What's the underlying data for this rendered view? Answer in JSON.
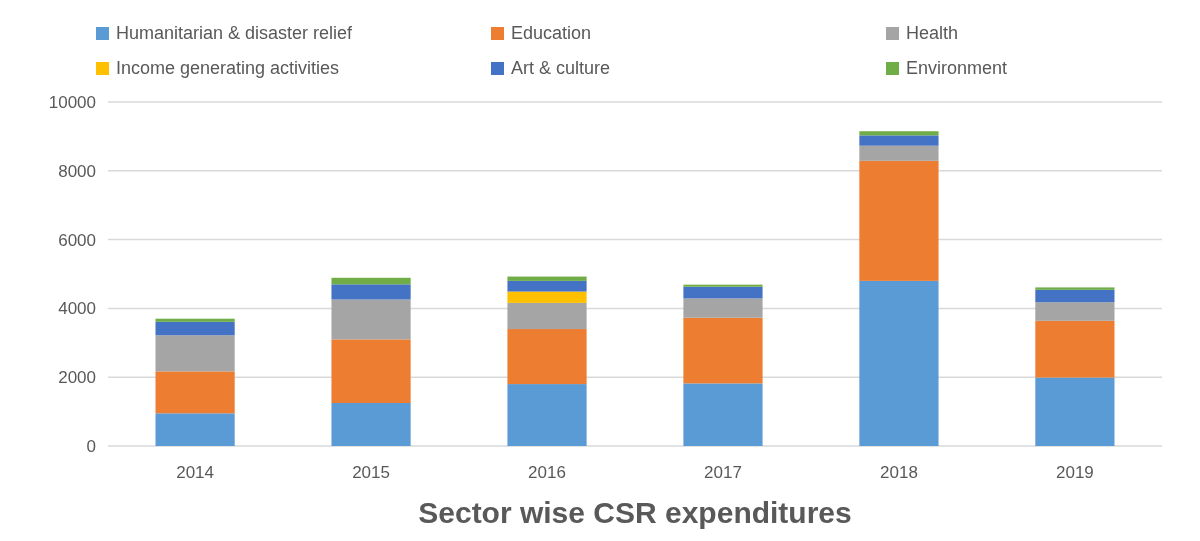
{
  "chart_data": {
    "type": "bar",
    "stacked": true,
    "title": "Sector wise CSR expenditures",
    "categories": [
      "2014",
      "2015",
      "2016",
      "2017",
      "2018",
      "2019"
    ],
    "series": [
      {
        "name": "Humanitarian & disaster relief",
        "color": "#5b9bd5",
        "values": [
          950,
          1250,
          1800,
          1820,
          4800,
          1990
        ]
      },
      {
        "name": "Education",
        "color": "#ed7d31",
        "values": [
          1220,
          1850,
          1600,
          1910,
          3490,
          1650
        ]
      },
      {
        "name": "Health",
        "color": "#a5a5a5",
        "values": [
          1050,
          1160,
          760,
          560,
          440,
          540
        ]
      },
      {
        "name": "Income generating activities",
        "color": "#ffc000",
        "values": [
          0,
          0,
          330,
          0,
          0,
          0
        ]
      },
      {
        "name": "Art & culture",
        "color": "#4472c4",
        "values": [
          390,
          440,
          310,
          340,
          300,
          360
        ]
      },
      {
        "name": "Environment",
        "color": "#70ad47",
        "values": [
          90,
          190,
          125,
          60,
          120,
          70
        ]
      }
    ],
    "ylim": [
      0,
      10000
    ],
    "yticks": [
      0,
      2000,
      4000,
      6000,
      8000,
      10000
    ],
    "grid": "y",
    "legend": "top"
  }
}
